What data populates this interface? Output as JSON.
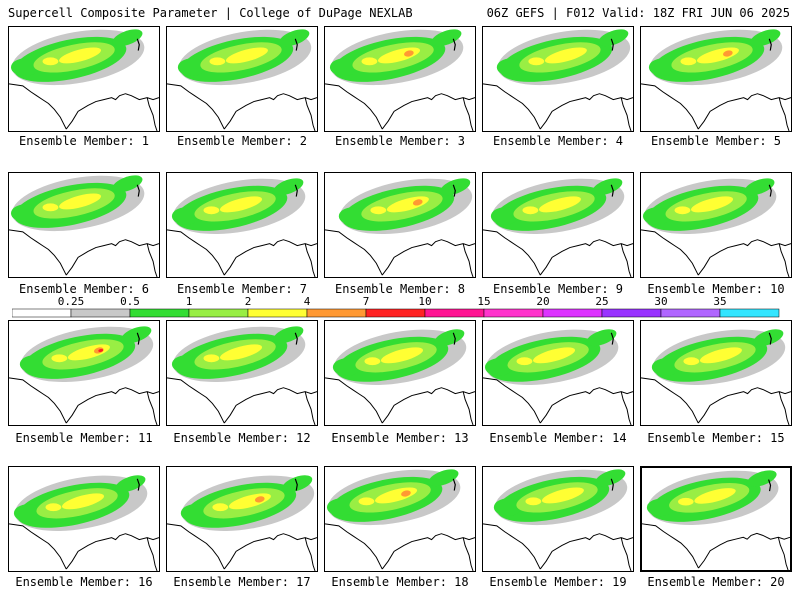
{
  "header": {
    "left_title": "Supercell Composite Parameter | College of DuPage NEXLAB",
    "right_title": "06Z GEFS | F012 Valid: 18Z FRI JUN 06 2025"
  },
  "members": [
    {
      "label": "Ensemble Member: 1"
    },
    {
      "label": "Ensemble Member: 2"
    },
    {
      "label": "Ensemble Member: 3"
    },
    {
      "label": "Ensemble Member: 4"
    },
    {
      "label": "Ensemble Member: 5"
    },
    {
      "label": "Ensemble Member: 6"
    },
    {
      "label": "Ensemble Member: 7"
    },
    {
      "label": "Ensemble Member: 8"
    },
    {
      "label": "Ensemble Member: 9"
    },
    {
      "label": "Ensemble Member: 10"
    },
    {
      "label": "Ensemble Member: 11"
    },
    {
      "label": "Ensemble Member: 12"
    },
    {
      "label": "Ensemble Member: 13"
    },
    {
      "label": "Ensemble Member: 14"
    },
    {
      "label": "Ensemble Member: 15"
    },
    {
      "label": "Ensemble Member: 16"
    },
    {
      "label": "Ensemble Member: 17"
    },
    {
      "label": "Ensemble Member: 18"
    },
    {
      "label": "Ensemble Member: 19"
    },
    {
      "label": "Ensemble Member: 20",
      "selected": true
    }
  ],
  "colorbar": {
    "labels": [
      "0.25",
      "0.5",
      "1",
      "2",
      "4",
      "7",
      "10",
      "15",
      "20",
      "25",
      "30",
      "35"
    ],
    "colors": [
      "#ffffff",
      "#c8c8c8",
      "#33dd33",
      "#99ee44",
      "#ffff33",
      "#ff9933",
      "#ff2222",
      "#ff1493",
      "#ff33cc",
      "#dd33ff",
      "#9933ff",
      "#b066ff",
      "#33e5ff"
    ]
  },
  "shade_colors": {
    "gray": "#c8c8c8",
    "green": "#33dd33",
    "lightgreen": "#99ee44",
    "yellow": "#ffff33",
    "orange": "#ff9933",
    "red": "#ff2222"
  }
}
